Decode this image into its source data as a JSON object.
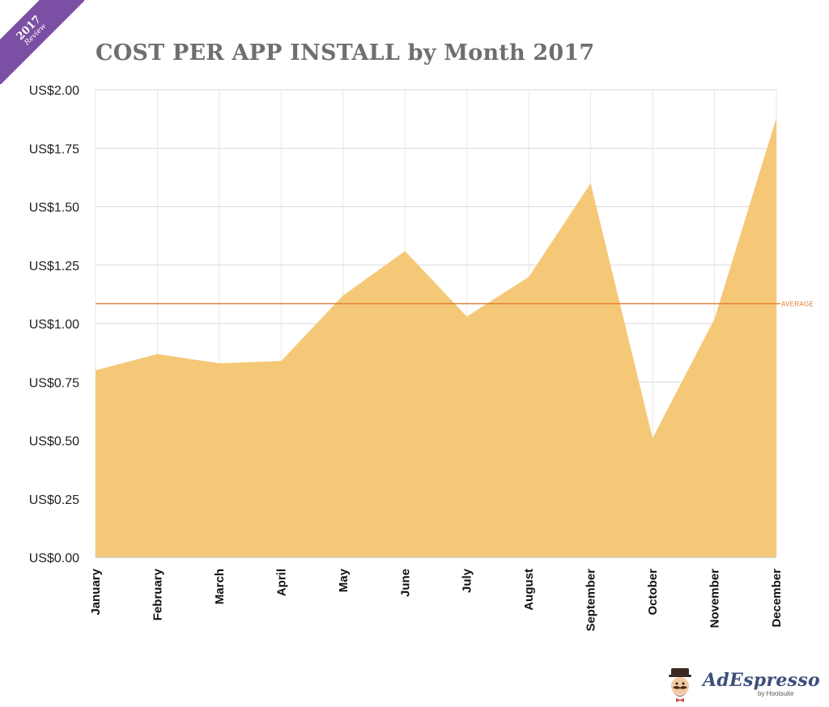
{
  "badge": {
    "year": "2017",
    "label": "Review",
    "color": "#7b4fa3"
  },
  "chart_data": {
    "type": "area",
    "title": "COST PER APP INSTALL by Month 2017",
    "categories": [
      "January",
      "February",
      "March",
      "April",
      "May",
      "June",
      "July",
      "August",
      "September",
      "October",
      "November",
      "December"
    ],
    "values": [
      0.8,
      0.87,
      0.83,
      0.84,
      1.12,
      1.31,
      1.03,
      1.2,
      1.6,
      0.51,
      1.02,
      1.88
    ],
    "ylim": [
      0,
      2
    ],
    "yticks": [
      0,
      0.25,
      0.5,
      0.75,
      1.0,
      1.25,
      1.5,
      1.75,
      2.0
    ],
    "ytick_labels": [
      "US$0.00",
      "US$0.25",
      "US$0.50",
      "US$0.75",
      "US$1.00",
      "US$1.25",
      "US$1.50",
      "US$1.75",
      "US$2.00"
    ],
    "average": {
      "value": 1.085,
      "label": "AVERAGE",
      "color": "#e07a2c"
    },
    "fill_color": "#f5c877",
    "grid": true
  },
  "logo": {
    "brand": "AdEspresso",
    "by": "by Hootsuite"
  }
}
